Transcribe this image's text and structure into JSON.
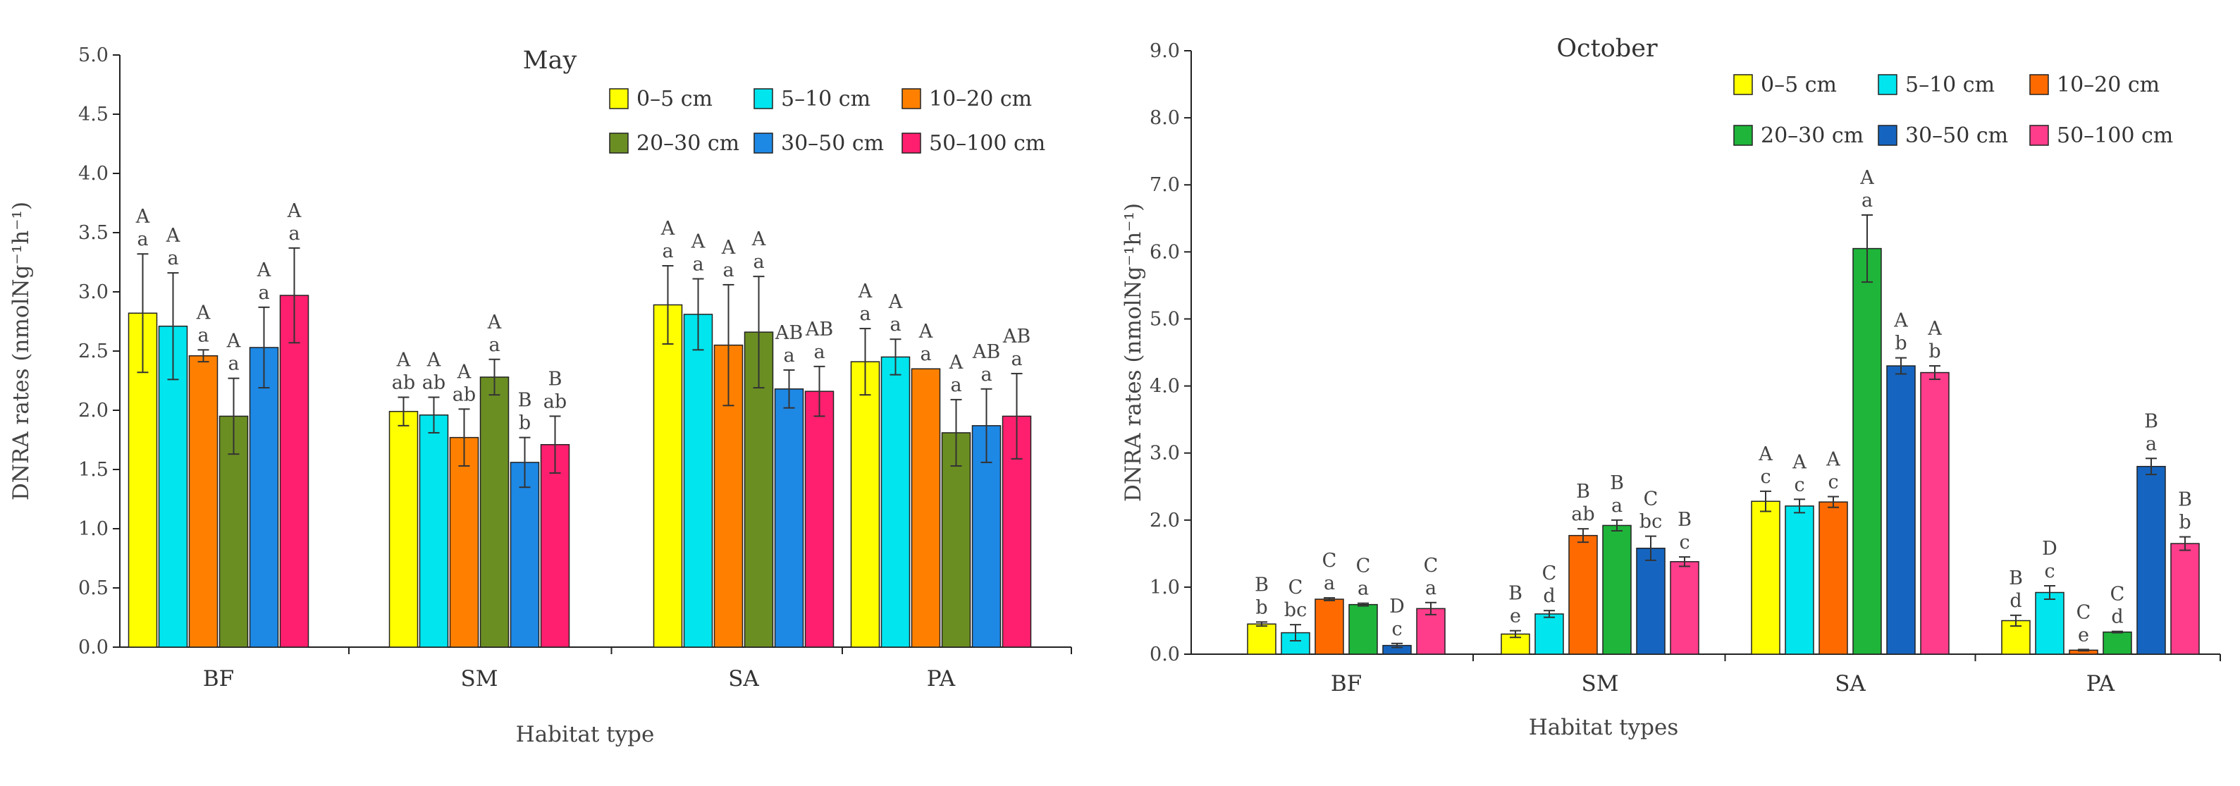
{
  "chart_data": [
    {
      "type": "bar",
      "title": "May",
      "xlabel": "Habitat type",
      "ylabel": "DNRA rates (nmolNg⁻¹h⁻¹)",
      "ylim": [
        0,
        5.0
      ],
      "yticks": [
        "0.0",
        "0.5",
        "1.0",
        "1.5",
        "2.0",
        "2.5",
        "3.0",
        "3.5",
        "4.0",
        "4.5",
        "5.0"
      ],
      "categories": [
        "BF",
        "SM",
        "SA",
        "PA"
      ],
      "legend_position": "top-right",
      "series": [
        {
          "name": "0–5 cm",
          "color": "#ffff00",
          "values": [
            2.82,
            1.99,
            2.89,
            2.41
          ],
          "errors": [
            0.5,
            0.12,
            0.33,
            0.28
          ],
          "upper": [
            "A",
            "A",
            "A",
            "A"
          ],
          "lower": [
            "a",
            "ab",
            "a",
            "a"
          ]
        },
        {
          "name": "5–10 cm",
          "color": "#00e5ee",
          "values": [
            2.71,
            1.96,
            2.81,
            2.45
          ],
          "errors": [
            0.45,
            0.15,
            0.3,
            0.15
          ],
          "upper": [
            "A",
            "A",
            "A",
            "A"
          ],
          "lower": [
            "a",
            "ab",
            "a",
            "a"
          ]
        },
        {
          "name": "10–20 cm",
          "color": "#ff8000",
          "values": [
            2.46,
            1.77,
            2.55,
            2.35
          ],
          "errors": [
            0.05,
            0.24,
            0.51,
            0.0
          ],
          "upper": [
            "A",
            "A",
            "A",
            "A"
          ],
          "lower": [
            "a",
            "ab",
            "a",
            "a"
          ]
        },
        {
          "name": "20–30 cm",
          "color": "#6b8e23",
          "values": [
            1.95,
            2.28,
            2.66,
            1.81
          ],
          "errors": [
            0.32,
            0.15,
            0.47,
            0.28
          ],
          "upper": [
            "A",
            "A",
            "A",
            "A"
          ],
          "lower": [
            "a",
            "a",
            "a",
            "a"
          ]
        },
        {
          "name": "30–50 cm",
          "color": "#1e88e5",
          "values": [
            2.53,
            1.56,
            2.18,
            1.87
          ],
          "errors": [
            0.34,
            0.21,
            0.16,
            0.31
          ],
          "upper": [
            "A",
            "B",
            "AB",
            "AB"
          ],
          "lower": [
            "a",
            "b",
            "a",
            "a"
          ]
        },
        {
          "name": "50–100 cm",
          "color": "#ff1f6e",
          "values": [
            2.97,
            1.71,
            2.16,
            1.95
          ],
          "errors": [
            0.4,
            0.24,
            0.21,
            0.36
          ],
          "upper": [
            "A",
            "B",
            "AB",
            "AB"
          ],
          "lower": [
            "a",
            "ab",
            "a",
            "a"
          ]
        }
      ]
    },
    {
      "type": "bar",
      "title": "October",
      "xlabel": "Habitat types",
      "ylabel": "DNRA rates (nmolNg⁻¹h⁻¹)",
      "ylim": [
        0,
        9.0
      ],
      "yticks": [
        "0.0",
        "1.0",
        "2.0",
        "3.0",
        "4.0",
        "5.0",
        "6.0",
        "7.0",
        "8.0",
        "9.0"
      ],
      "categories": [
        "BF",
        "SM",
        "SA",
        "PA"
      ],
      "legend_position": "top-right",
      "series": [
        {
          "name": "0–5 cm",
          "color": "#ffff00",
          "values": [
            0.45,
            0.3,
            2.28,
            0.5
          ],
          "errors": [
            0.03,
            0.05,
            0.15,
            0.08
          ],
          "upper": [
            "B",
            "B",
            "A",
            "B"
          ],
          "lower": [
            "b",
            "e",
            "c",
            "d"
          ]
        },
        {
          "name": "5–10 cm",
          "color": "#00e5ee",
          "values": [
            0.32,
            0.6,
            2.21,
            0.92
          ],
          "errors": [
            0.12,
            0.05,
            0.1,
            0.1
          ],
          "upper": [
            "C",
            "C",
            "A",
            "D"
          ],
          "lower": [
            "bc",
            "d",
            "c",
            "c"
          ]
        },
        {
          "name": "10–20 cm",
          "color": "#ff6a00",
          "values": [
            0.82,
            1.77,
            2.27,
            0.06
          ],
          "errors": [
            0.02,
            0.1,
            0.08,
            0.01
          ],
          "upper": [
            "C",
            "B",
            "A",
            "C"
          ],
          "lower": [
            "a",
            "ab",
            "c",
            "e"
          ]
        },
        {
          "name": "20–30 cm",
          "color": "#1eb53a",
          "values": [
            0.74,
            1.92,
            6.05,
            0.33
          ],
          "errors": [
            0.02,
            0.08,
            0.5,
            0.01
          ],
          "upper": [
            "C",
            "B",
            "A",
            "C"
          ],
          "lower": [
            "a",
            "a",
            "a",
            "d"
          ]
        },
        {
          "name": "30–50 cm",
          "color": "#1565c0",
          "values": [
            0.13,
            1.58,
            4.3,
            2.8
          ],
          "errors": [
            0.03,
            0.18,
            0.12,
            0.12
          ],
          "upper": [
            "D",
            "C",
            "A",
            "B"
          ],
          "lower": [
            "c",
            "bc",
            "b",
            "a"
          ]
        },
        {
          "name": "50–100 cm",
          "color": "#ff3d8b",
          "values": [
            0.68,
            1.38,
            4.2,
            1.65
          ],
          "errors": [
            0.09,
            0.07,
            0.1,
            0.1
          ],
          "upper": [
            "C",
            "B",
            "A",
            "B"
          ],
          "lower": [
            "a",
            "c",
            "b",
            "b"
          ]
        }
      ]
    }
  ]
}
